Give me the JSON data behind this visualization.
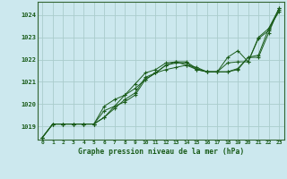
{
  "title": "Graphe pression niveau de la mer (hPa)",
  "background_color": "#cce8ee",
  "grid_color": "#aacccc",
  "line_color": "#1a5c1a",
  "xlim": [
    -0.5,
    23.5
  ],
  "ylim": [
    1018.4,
    1024.6
  ],
  "yticks": [
    1019,
    1020,
    1021,
    1022,
    1023,
    1024
  ],
  "xticks": [
    0,
    1,
    2,
    3,
    4,
    5,
    6,
    7,
    8,
    9,
    10,
    11,
    12,
    13,
    14,
    15,
    16,
    17,
    18,
    19,
    20,
    21,
    22,
    23
  ],
  "series": [
    [
      1018.5,
      1019.1,
      1019.1,
      1019.1,
      1019.1,
      1019.1,
      1019.4,
      1019.8,
      1020.2,
      1020.5,
      1021.2,
      1021.4,
      1021.75,
      1021.85,
      1021.85,
      1021.55,
      1021.45,
      1021.45,
      1022.1,
      1022.4,
      1021.9,
      1023.0,
      1023.4,
      1024.15
    ],
    [
      1018.5,
      1019.1,
      1019.1,
      1019.1,
      1019.1,
      1019.1,
      1019.7,
      1019.9,
      1020.4,
      1020.7,
      1021.1,
      1021.4,
      1021.75,
      1021.9,
      1021.75,
      1021.55,
      1021.45,
      1021.45,
      1021.85,
      1021.9,
      1021.9,
      1022.95,
      1023.3,
      1024.25
    ],
    [
      1018.5,
      1019.1,
      1019.1,
      1019.1,
      1019.1,
      1019.1,
      1019.4,
      1019.9,
      1020.1,
      1020.4,
      1021.1,
      1021.4,
      1021.55,
      1021.65,
      1021.75,
      1021.65,
      1021.45,
      1021.45,
      1021.45,
      1021.55,
      1022.1,
      1022.1,
      1023.2,
      1024.3
    ],
    [
      1018.5,
      1019.1,
      1019.1,
      1019.1,
      1019.1,
      1019.1,
      1019.9,
      1020.2,
      1020.4,
      1020.9,
      1021.4,
      1021.55,
      1021.85,
      1021.9,
      1021.9,
      1021.6,
      1021.45,
      1021.45,
      1021.45,
      1021.6,
      1022.1,
      1022.2,
      1023.4,
      1024.3
    ]
  ]
}
